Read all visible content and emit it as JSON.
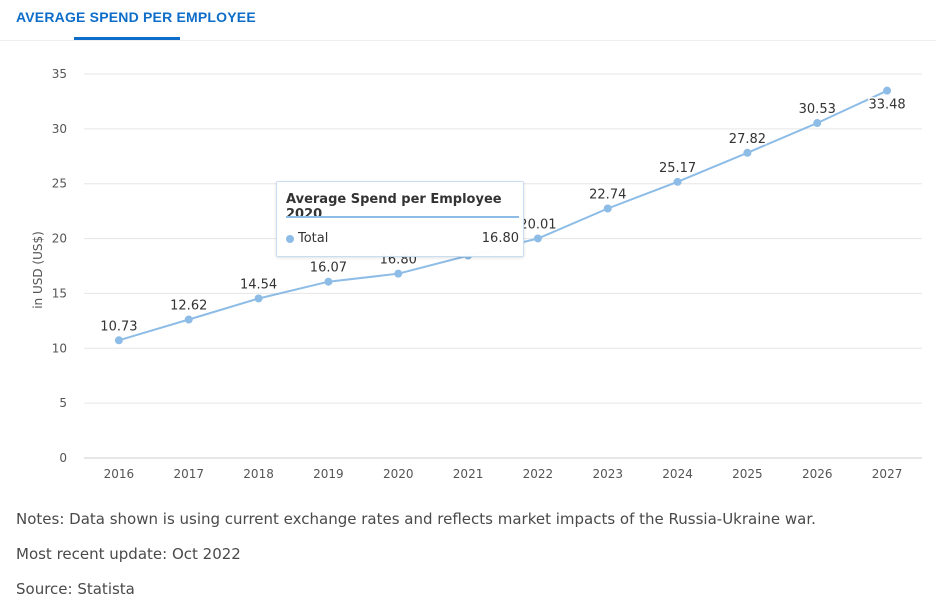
{
  "header": {
    "tab_title": "AVERAGE SPEND PER EMPLOYEE"
  },
  "colors": {
    "accent": "#0e6dc9",
    "series": "#8dbce6",
    "grid": "#e6e6e6"
  },
  "tooltip": {
    "title": "Average Spend per Employee 2020",
    "series_name": "Total",
    "value": "16.80"
  },
  "chart_data": {
    "type": "line",
    "title": "",
    "xlabel": "",
    "ylabel": "in USD (US$)",
    "ylim": [
      0,
      35
    ],
    "yticks": [
      0,
      5,
      10,
      15,
      20,
      25,
      30,
      35
    ],
    "grid": true,
    "categories": [
      "2016",
      "2017",
      "2018",
      "2019",
      "2020",
      "2021",
      "2022",
      "2023",
      "2024",
      "2025",
      "2026",
      "2027"
    ],
    "series": [
      {
        "name": "Total",
        "values": [
          10.73,
          12.62,
          14.54,
          16.07,
          16.8,
          18.45,
          20.01,
          22.74,
          25.17,
          27.82,
          30.53,
          33.48
        ],
        "labels": [
          "10.73",
          "12.62",
          "14.54",
          "16.07",
          "16.80",
          "",
          "20.01",
          "22.74",
          "25.17",
          "27.82",
          "30.53",
          "33.48"
        ]
      }
    ]
  },
  "footer": {
    "notes": "Notes: Data shown is using current exchange rates and reflects market impacts of the Russia-Ukraine war.",
    "update": "Most recent update: Oct 2022",
    "source": "Source: Statista"
  }
}
